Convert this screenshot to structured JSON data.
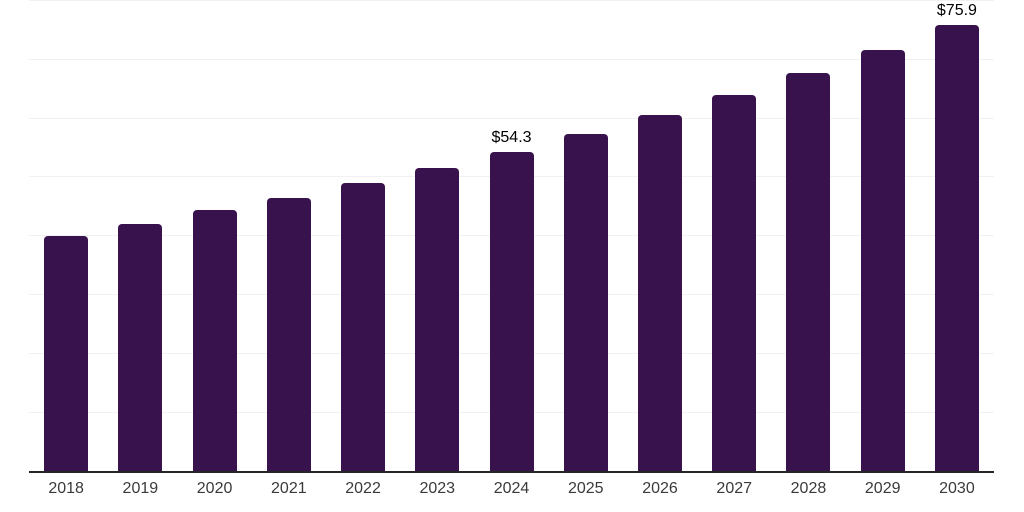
{
  "chart": {
    "background_color": "#ffffff",
    "bar_color": "#38124d",
    "gridline_color": "#f1f1f1",
    "axis_line_color": "#262626",
    "tick_label_color": "#3a3a3a",
    "value_label_color": "#000000"
  },
  "chart_data": {
    "type": "bar",
    "title": "",
    "xlabel": "",
    "ylabel": "",
    "categories": [
      "2018",
      "2019",
      "2020",
      "2021",
      "2022",
      "2023",
      "2024",
      "2025",
      "2026",
      "2027",
      "2028",
      "2029",
      "2030"
    ],
    "values": [
      40.0,
      42.0,
      44.3,
      46.4,
      49.0,
      51.5,
      54.3,
      57.3,
      60.5,
      63.9,
      67.7,
      71.6,
      75.9
    ],
    "value_labels": {
      "2024": "$54.3",
      "2030": "$75.9"
    },
    "unit_prefix": "$",
    "ylim": [
      0,
      80
    ],
    "gridlines_every": 10,
    "grid": true,
    "legend": false,
    "y_axis_tick_labels_visible": false
  }
}
